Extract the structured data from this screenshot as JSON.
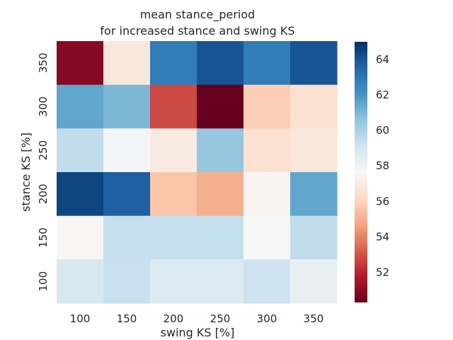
{
  "chart_data": {
    "type": "heatmap",
    "title": "mean stance_period\nfor increased stance and swing KS",
    "title_lines": [
      "mean stance_period",
      "for increased stance and swing KS"
    ],
    "xlabel": "swing KS [%]",
    "ylabel": "stance KS [%]",
    "x_categories": [
      "100",
      "150",
      "200",
      "250",
      "300",
      "350"
    ],
    "y_categories": [
      "350",
      "300",
      "250",
      "200",
      "150",
      "100"
    ],
    "values": [
      [
        50.9,
        56.8,
        62.8,
        64.0,
        62.8,
        64.0
      ],
      [
        61.5,
        61.0,
        52.8,
        50.3,
        55.8,
        56.5
      ],
      [
        59.5,
        57.8,
        57.0,
        60.5,
        56.5,
        56.8
      ],
      [
        64.4,
        63.7,
        55.6,
        55.0,
        57.5,
        61.5
      ],
      [
        57.6,
        59.4,
        59.4,
        59.4,
        57.7,
        59.5
      ],
      [
        58.9,
        59.3,
        58.7,
        58.7,
        59.2,
        58.2
      ]
    ],
    "colorbar": {
      "colormap": "RdBu",
      "range": [
        50.3,
        65.0
      ],
      "ticks": [
        52,
        54,
        56,
        58,
        60,
        62,
        64
      ]
    },
    "grid": false,
    "colorbar_position": "right"
  }
}
